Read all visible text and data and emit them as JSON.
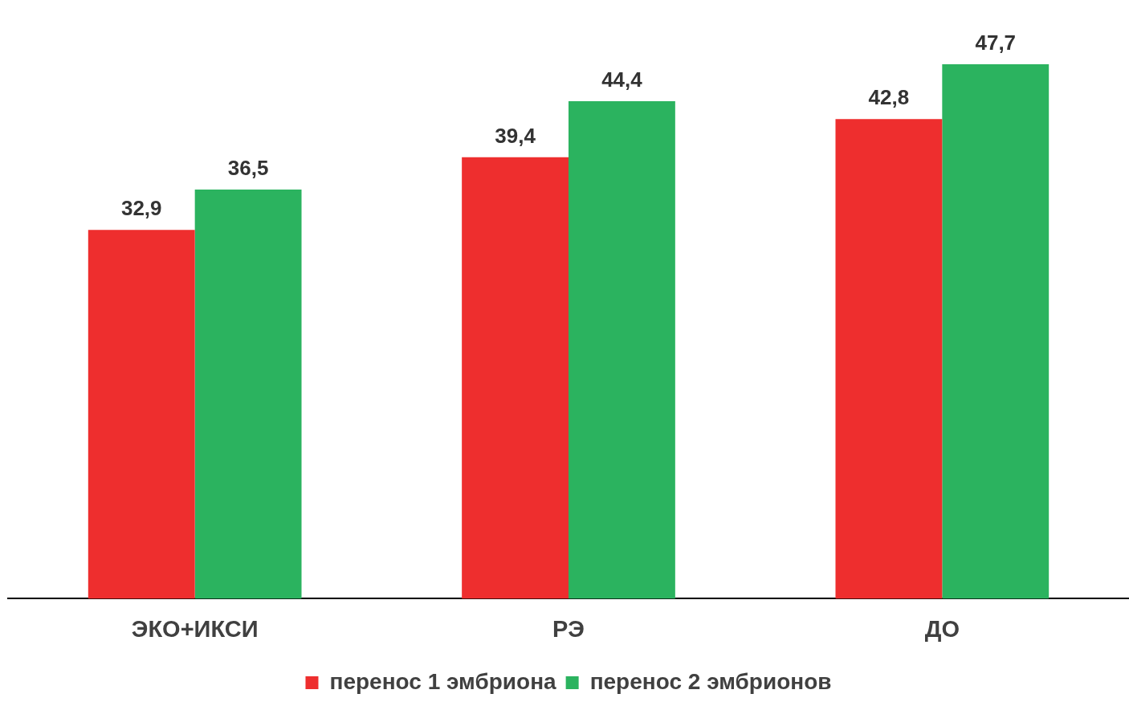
{
  "chart_data": {
    "type": "bar",
    "categories": [
      "ЭКО+ИКСИ",
      "РЭ",
      "ДО"
    ],
    "series": [
      {
        "name": "перенос 1 эмбриона",
        "color": "#ee2e2e",
        "values": [
          32.9,
          39.4,
          42.8
        ],
        "value_labels": [
          "32,9",
          "39,4",
          "42,8"
        ]
      },
      {
        "name": "перенос 2 эмбрионов",
        "color": "#2bb35f",
        "values": [
          36.5,
          44.4,
          47.7
        ],
        "value_labels": [
          "36,5",
          "44,4",
          "47,7"
        ]
      }
    ],
    "legend": "bottom",
    "grid": false,
    "tick_labels": "x"
  }
}
